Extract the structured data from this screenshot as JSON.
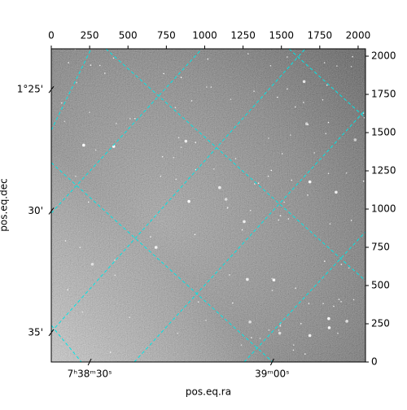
{
  "chart_data": {
    "type": "image",
    "xlabel": "pos.eq.ra",
    "ylabel": "pos.eq.dec",
    "xlim": [
      0,
      2048
    ],
    "ylim": [
      0,
      2048
    ],
    "xticks": [
      0,
      250,
      500,
      750,
      1000,
      1250,
      1500,
      1750,
      2000
    ],
    "yticks": [
      0,
      250,
      500,
      750,
      1000,
      1250,
      1500,
      1750,
      2000
    ],
    "ra_ticks": [
      {
        "value": 250,
        "label": "7ʰ38ᵐ30ˢ"
      },
      {
        "value": 1440,
        "label": "39ᵐ00ˢ"
      }
    ],
    "dec_ticks": [
      {
        "value": 1781,
        "label": "1°25'"
      },
      {
        "value": 987,
        "label": "30'"
      },
      {
        "value": 192,
        "label": "35'"
      }
    ],
    "grid_color": "#00e5e5"
  }
}
